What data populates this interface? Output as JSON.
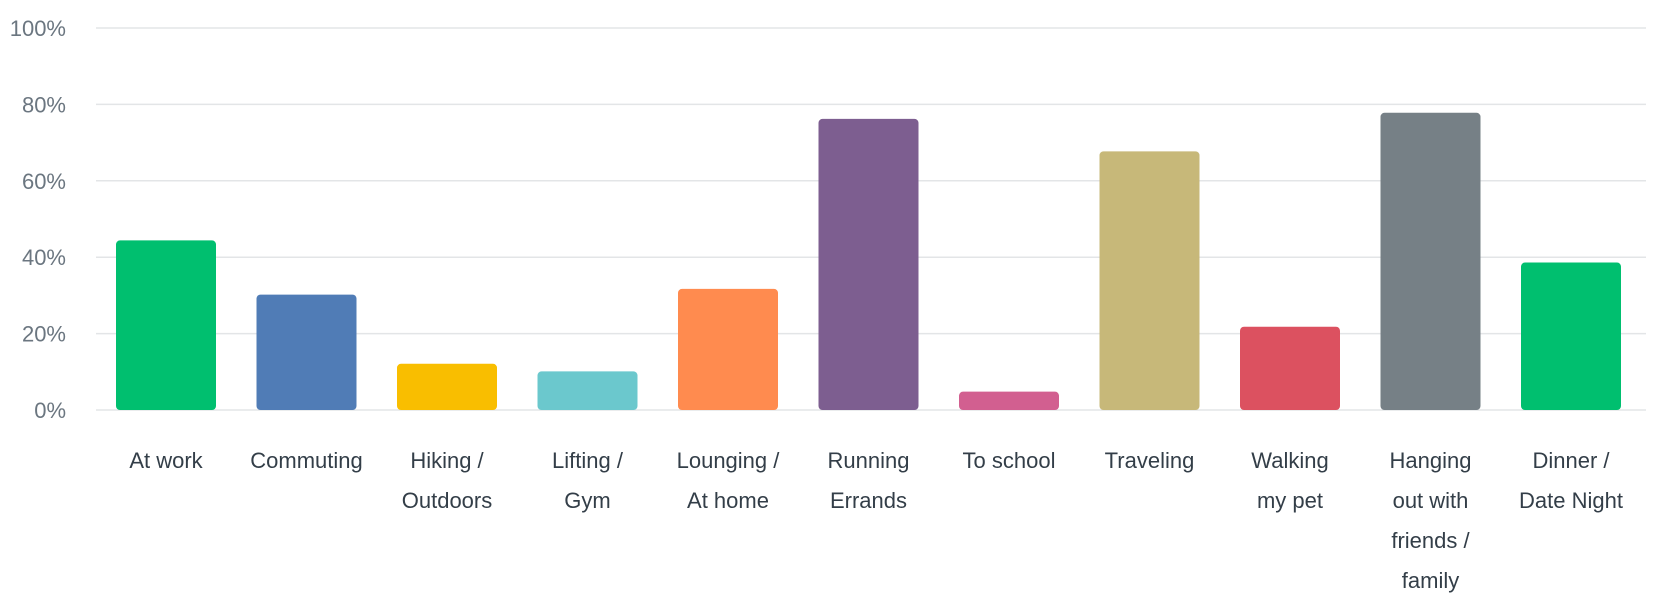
{
  "chart_data": {
    "type": "bar",
    "title": "",
    "xlabel": "",
    "ylabel": "",
    "ylim": [
      0,
      100
    ],
    "y_ticks": [
      "0%",
      "20%",
      "40%",
      "60%",
      "80%",
      "100%"
    ],
    "y_tick_values": [
      0,
      20,
      40,
      60,
      80,
      100
    ],
    "grid": true,
    "legend": "none",
    "categories": [
      [
        "At work"
      ],
      [
        "Commuting"
      ],
      [
        "Hiking /",
        "Outdoors"
      ],
      [
        "Lifting /",
        "Gym"
      ],
      [
        "Lounging /",
        "At home"
      ],
      [
        "Running",
        "Errands"
      ],
      [
        "To school"
      ],
      [
        "Traveling"
      ],
      [
        "Walking",
        "my pet"
      ],
      [
        "Hanging",
        "out with",
        "friends /",
        "family"
      ],
      [
        "Dinner /",
        "Date Night"
      ]
    ],
    "values": [
      44.4,
      30.2,
      12.1,
      10.1,
      31.7,
      76.2,
      4.8,
      67.7,
      21.8,
      77.8,
      38.6
    ],
    "colors": [
      "#00bf6f",
      "#507cb6",
      "#f9be00",
      "#6bc8cd",
      "#ff8b4f",
      "#7d5e90",
      "#d25f90",
      "#c7b879",
      "#dc5160",
      "#768086",
      "#00bf6f"
    ]
  }
}
